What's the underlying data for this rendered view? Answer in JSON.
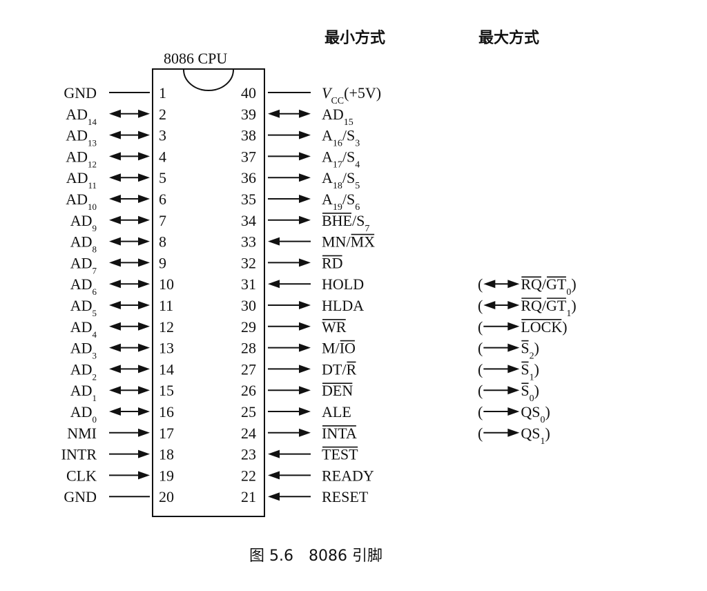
{
  "headers": {
    "min_mode": "最小方式",
    "max_mode": "最大方式"
  },
  "chip": {
    "title": "8086 CPU"
  },
  "caption": "图 5.6　8086 引脚",
  "left_pins": [
    {
      "num": "1",
      "name": "GND",
      "sub": "",
      "arrow": "none"
    },
    {
      "num": "2",
      "name": "AD",
      "sub": "14",
      "arrow": "bi"
    },
    {
      "num": "3",
      "name": "AD",
      "sub": "13",
      "arrow": "bi"
    },
    {
      "num": "4",
      "name": "AD",
      "sub": "12",
      "arrow": "bi"
    },
    {
      "num": "5",
      "name": "AD",
      "sub": "11",
      "arrow": "bi"
    },
    {
      "num": "6",
      "name": "AD",
      "sub": "10",
      "arrow": "bi"
    },
    {
      "num": "7",
      "name": "AD",
      "sub": "9",
      "arrow": "bi"
    },
    {
      "num": "8",
      "name": "AD",
      "sub": "8",
      "arrow": "bi"
    },
    {
      "num": "9",
      "name": "AD",
      "sub": "7",
      "arrow": "bi"
    },
    {
      "num": "10",
      "name": "AD",
      "sub": "6",
      "arrow": "bi"
    },
    {
      "num": "11",
      "name": "AD",
      "sub": "5",
      "arrow": "bi"
    },
    {
      "num": "12",
      "name": "AD",
      "sub": "4",
      "arrow": "bi"
    },
    {
      "num": "13",
      "name": "AD",
      "sub": "3",
      "arrow": "bi"
    },
    {
      "num": "14",
      "name": "AD",
      "sub": "2",
      "arrow": "bi"
    },
    {
      "num": "15",
      "name": "AD",
      "sub": "1",
      "arrow": "bi"
    },
    {
      "num": "16",
      "name": "AD",
      "sub": "0",
      "arrow": "bi"
    },
    {
      "num": "17",
      "name": "NMI",
      "sub": "",
      "arrow": "in"
    },
    {
      "num": "18",
      "name": "INTR",
      "sub": "",
      "arrow": "in"
    },
    {
      "num": "19",
      "name": "CLK",
      "sub": "",
      "arrow": "in"
    },
    {
      "num": "20",
      "name": "GND",
      "sub": "",
      "arrow": "none"
    }
  ],
  "right_pins": [
    {
      "num": "40",
      "arrow": "none",
      "segs": [
        {
          "t": "V",
          "i": true
        },
        {
          "t": "CC",
          "sub": true
        },
        {
          "t": "(+5V)"
        }
      ]
    },
    {
      "num": "39",
      "arrow": "bi",
      "segs": [
        {
          "t": "AD"
        },
        {
          "t": "15",
          "sub": true
        }
      ]
    },
    {
      "num": "38",
      "arrow": "out",
      "segs": [
        {
          "t": "A"
        },
        {
          "t": "16",
          "sub": true
        },
        {
          "t": "/S"
        },
        {
          "t": "3",
          "sub": true
        }
      ]
    },
    {
      "num": "37",
      "arrow": "out",
      "segs": [
        {
          "t": "A"
        },
        {
          "t": "17",
          "sub": true
        },
        {
          "t": "/S"
        },
        {
          "t": "4",
          "sub": true
        }
      ]
    },
    {
      "num": "36",
      "arrow": "out",
      "segs": [
        {
          "t": "A"
        },
        {
          "t": "18",
          "sub": true
        },
        {
          "t": "/S"
        },
        {
          "t": "5",
          "sub": true
        }
      ]
    },
    {
      "num": "35",
      "arrow": "out",
      "segs": [
        {
          "t": "A"
        },
        {
          "t": "19",
          "sub": true
        },
        {
          "t": "/S"
        },
        {
          "t": "6",
          "sub": true
        }
      ]
    },
    {
      "num": "34",
      "arrow": "out",
      "segs": [
        {
          "t": "BHE",
          "o": true
        },
        {
          "t": "/S"
        },
        {
          "t": "7",
          "sub": true
        }
      ]
    },
    {
      "num": "33",
      "arrow": "in",
      "segs": [
        {
          "t": "MN/"
        },
        {
          "t": "MX",
          "o": true
        }
      ]
    },
    {
      "num": "32",
      "arrow": "out",
      "segs": [
        {
          "t": "RD",
          "o": true
        }
      ]
    },
    {
      "num": "31",
      "arrow": "in",
      "segs": [
        {
          "t": "HOLD"
        }
      ]
    },
    {
      "num": "30",
      "arrow": "out",
      "segs": [
        {
          "t": "HLDA"
        }
      ]
    },
    {
      "num": "29",
      "arrow": "out",
      "segs": [
        {
          "t": "WR",
          "o": true
        }
      ]
    },
    {
      "num": "28",
      "arrow": "out",
      "segs": [
        {
          "t": "M/"
        },
        {
          "t": "IO",
          "o": true
        }
      ]
    },
    {
      "num": "27",
      "arrow": "out",
      "segs": [
        {
          "t": "DT/"
        },
        {
          "t": "R",
          "o": true
        }
      ]
    },
    {
      "num": "26",
      "arrow": "out",
      "segs": [
        {
          "t": "DEN",
          "o": true
        }
      ]
    },
    {
      "num": "25",
      "arrow": "out",
      "segs": [
        {
          "t": "ALE"
        }
      ]
    },
    {
      "num": "24",
      "arrow": "out",
      "segs": [
        {
          "t": "INTA",
          "o": true
        }
      ]
    },
    {
      "num": "23",
      "arrow": "in",
      "segs": [
        {
          "t": "TEST",
          "o": true
        }
      ]
    },
    {
      "num": "22",
      "arrow": "in",
      "segs": [
        {
          "t": "READY"
        }
      ]
    },
    {
      "num": "21",
      "arrow": "in",
      "segs": [
        {
          "t": "RESET"
        }
      ]
    }
  ],
  "max_mode_pins": [
    {
      "pin": "31",
      "arrow": "bi",
      "segs": [
        {
          "t": "("
        },
        {
          "t": "ARROW"
        },
        {
          "t": "RQ",
          "o": true
        },
        {
          "t": "/"
        },
        {
          "t": "GT",
          "o": true
        },
        {
          "t": "0",
          "sub": true
        },
        {
          "t": ")"
        }
      ]
    },
    {
      "pin": "30",
      "arrow": "bi",
      "segs": [
        {
          "t": "("
        },
        {
          "t": "ARROW"
        },
        {
          "t": "RQ",
          "o": true
        },
        {
          "t": "/"
        },
        {
          "t": "GT",
          "o": true
        },
        {
          "t": "1",
          "sub": true
        },
        {
          "t": ")"
        }
      ]
    },
    {
      "pin": "29",
      "arrow": "out",
      "segs": [
        {
          "t": "("
        },
        {
          "t": "ARROW"
        },
        {
          "t": "LOCK",
          "o": true
        },
        {
          "t": ")"
        }
      ]
    },
    {
      "pin": "28",
      "arrow": "out",
      "segs": [
        {
          "t": "("
        },
        {
          "t": "ARROW"
        },
        {
          "t": "S",
          "o": true
        },
        {
          "t": "2",
          "sub": true
        },
        {
          "t": ")"
        }
      ]
    },
    {
      "pin": "27",
      "arrow": "out",
      "segs": [
        {
          "t": "("
        },
        {
          "t": "ARROW"
        },
        {
          "t": "S",
          "o": true
        },
        {
          "t": "1",
          "sub": true
        },
        {
          "t": ")"
        }
      ]
    },
    {
      "pin": "26",
      "arrow": "out",
      "segs": [
        {
          "t": "("
        },
        {
          "t": "ARROW"
        },
        {
          "t": "S",
          "o": true
        },
        {
          "t": "0",
          "sub": true
        },
        {
          "t": ")"
        }
      ]
    },
    {
      "pin": "25",
      "arrow": "out",
      "segs": [
        {
          "t": "("
        },
        {
          "t": "ARROW"
        },
        {
          "t": "QS"
        },
        {
          "t": "0",
          "sub": true
        },
        {
          "t": ")"
        }
      ]
    },
    {
      "pin": "24",
      "arrow": "out",
      "segs": [
        {
          "t": "("
        },
        {
          "t": "ARROW"
        },
        {
          "t": "QS"
        },
        {
          "t": "1",
          "sub": true
        },
        {
          "t": ")"
        }
      ]
    }
  ]
}
